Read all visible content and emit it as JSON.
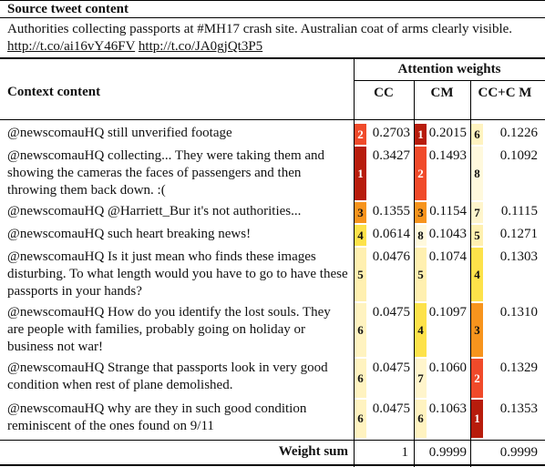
{
  "source_header": "Source tweet content",
  "source_text": "Authorities collecting passports at #MH17 crash site. Australian coat of arms clearly visible.",
  "source_links": [
    "http://t.co/ai16vY46FV",
    "http://t.co/JA0gjQt3P5"
  ],
  "attention_header": "Attention weights",
  "context_header": "Context content",
  "columns": [
    "CC",
    "CM",
    "CC+C M"
  ],
  "rows": [
    {
      "text": "@newscomauHQ still unverified footage",
      "cc": {
        "rank": "2",
        "value": "0.2703",
        "color": "#f04a2a"
      },
      "cm": {
        "rank": "1",
        "value": "0.2015",
        "color": "#b71c0c"
      },
      "ccm": {
        "rank": "6",
        "value": "0.1226",
        "color": "#fff3c0"
      }
    },
    {
      "text": "@newscomauHQ collecting... They were taking them and showing the cameras the faces of passengers and then throwing them back down. :(",
      "cc": {
        "rank": "1",
        "value": "0.3427",
        "color": "#b71c0c"
      },
      "cm": {
        "rank": "2",
        "value": "0.1493",
        "color": "#f04a2a"
      },
      "ccm": {
        "rank": "8",
        "value": "0.1092",
        "color": "#fff9dd"
      }
    },
    {
      "text": "@newscomauHQ @Harriett_Bur it's not authorities...",
      "cc": {
        "rank": "3",
        "value": "0.1355",
        "color": "#f7941d"
      },
      "cm": {
        "rank": "3",
        "value": "0.1154",
        "color": "#f7941d"
      },
      "ccm": {
        "rank": "7",
        "value": "0.1115",
        "color": "#fff5cc"
      }
    },
    {
      "text": "@newscomauHQ such heart breaking news!",
      "cc": {
        "rank": "4",
        "value": "0.0614",
        "color": "#fde24a"
      },
      "cm": {
        "rank": "8",
        "value": "0.1043",
        "color": "#fff9dd"
      },
      "ccm": {
        "rank": "5",
        "value": "0.1271",
        "color": "#fff0b0"
      }
    },
    {
      "text": "@newscomauHQ Is it just mean who finds these images disturbing. To what length would you have to go to have these passports in your hands?",
      "cc": {
        "rank": "5",
        "value": "0.0476",
        "color": "#fff0b0"
      },
      "cm": {
        "rank": "5",
        "value": "0.1074",
        "color": "#fff0b0"
      },
      "ccm": {
        "rank": "4",
        "value": "0.1303",
        "color": "#fde24a"
      }
    },
    {
      "text": "@newscomauHQ How do you identify the lost souls. They are people with families, probably going on holiday or business not war!",
      "cc": {
        "rank": "6",
        "value": "0.0475",
        "color": "#fff3c0"
      },
      "cm": {
        "rank": "4",
        "value": "0.1097",
        "color": "#fde24a"
      },
      "ccm": {
        "rank": "3",
        "value": "0.1310",
        "color": "#f7941d"
      }
    },
    {
      "text": "@newscomauHQ Strange that passports look in very good condition when rest of plane demolished.",
      "cc": {
        "rank": "6",
        "value": "0.0475",
        "color": "#fff3c0"
      },
      "cm": {
        "rank": "7",
        "value": "0.1060",
        "color": "#fff5cc"
      },
      "ccm": {
        "rank": "2",
        "value": "0.1329",
        "color": "#f04a2a"
      }
    },
    {
      "text": "@newscomauHQ why are they in such good condition reminiscent of the ones found on 9/11",
      "cc": {
        "rank": "6",
        "value": "0.0475",
        "color": "#fff3c0"
      },
      "cm": {
        "rank": "6",
        "value": "0.1063",
        "color": "#fff3c0"
      },
      "ccm": {
        "rank": "1",
        "value": "0.1353",
        "color": "#b71c0c"
      }
    }
  ],
  "sum_label": "Weight sum",
  "sums": [
    "1",
    "0.9999",
    "0.9999"
  ]
}
